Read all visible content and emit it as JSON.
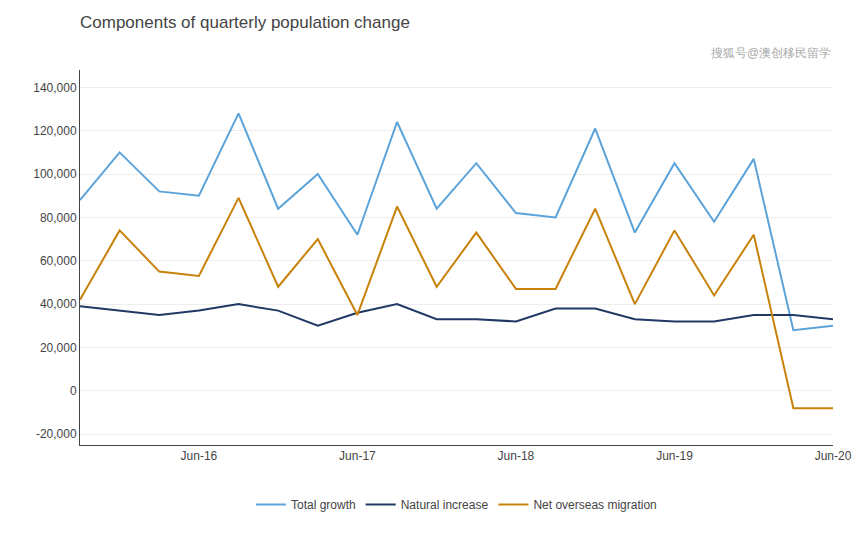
{
  "chart_data": {
    "type": "line",
    "title": "Components of quarterly population change",
    "annotations": [
      "搜狐号@澳创移民留学"
    ],
    "categories": [
      null,
      null,
      null,
      "Jun-16",
      null,
      null,
      null,
      "Jun-17",
      null,
      null,
      null,
      "Jun-18",
      null,
      null,
      null,
      "Jun-19",
      null,
      null,
      null,
      "Jun-20"
    ],
    "series": [
      {
        "name": "Total growth",
        "color": "#5ba3d9",
        "values": [
          88000,
          110000,
          92000,
          90000,
          128000,
          84000,
          100000,
          72000,
          124000,
          84000,
          105000,
          82000,
          80000,
          121000,
          73000,
          105000,
          78000,
          107000,
          28000,
          30000
        ]
      },
      {
        "name": "Natural increase",
        "color": "#1f3864",
        "values": [
          39000,
          37000,
          35000,
          37000,
          40000,
          37000,
          30000,
          36000,
          40000,
          33000,
          33000,
          32000,
          38000,
          38000,
          33000,
          32000,
          32000,
          35000,
          35000,
          33000
        ]
      },
      {
        "name": "Net overseas migration",
        "color": "#c8820a",
        "values": [
          42000,
          74000,
          55000,
          53000,
          89000,
          48000,
          70000,
          35000,
          85000,
          48000,
          73000,
          47000,
          47000,
          84000,
          40000,
          74000,
          44000,
          72000,
          -8000,
          -8000
        ]
      }
    ],
    "ylim": [
      -25000,
      148000
    ],
    "yticks": [
      {
        "value": -20000,
        "label": "-20,000"
      },
      0,
      {
        "value": 20000,
        "label": "20,000"
      },
      {
        "value": 40000,
        "label": "40,000"
      },
      {
        "value": 60000,
        "label": "60,000"
      },
      {
        "value": 80000,
        "label": "80,000"
      },
      {
        "value": 100000,
        "label": "100,000"
      },
      {
        "value": 120000,
        "label": "120,000"
      },
      {
        "value": 140000,
        "label": "140,000"
      }
    ],
    "grid": true,
    "legend": "bottom"
  }
}
